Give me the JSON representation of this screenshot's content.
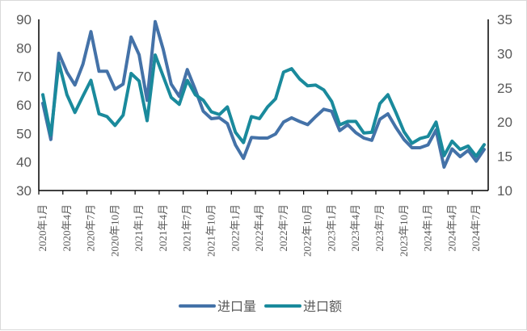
{
  "chart_data": {
    "type": "line",
    "title": "",
    "x_start": "2020-01",
    "x_tick_labels": [
      "2020年1月",
      "2020年4月",
      "2020年7月",
      "2020年10月",
      "2021年1月",
      "2021年4月",
      "2021年7月",
      "2021年10月",
      "2022年1月",
      "2022年4月",
      "2022年7月",
      "2022年10月",
      "2023年1月",
      "2023年4月",
      "2023年7月",
      "2023年10月",
      "2024年1月",
      "2024年4月",
      "2024年7月"
    ],
    "left_axis": {
      "ylim": [
        30,
        90
      ],
      "ticks": [
        30,
        40,
        50,
        60,
        70,
        80,
        90
      ]
    },
    "right_axis": {
      "ylim": [
        10,
        35
      ],
      "ticks": [
        10,
        15,
        20,
        25,
        30,
        35
      ]
    },
    "legend_position": "bottom",
    "grid": false,
    "series": [
      {
        "name": "进口量",
        "axis": "left",
        "color": "#4472a8",
        "values": [
          60.6,
          47.9,
          78.1,
          71.5,
          67,
          74.3,
          85.7,
          71.8,
          71.8,
          65.5,
          67.3,
          83.8,
          77.6,
          61.6,
          89.2,
          79.5,
          67.3,
          63,
          72.4,
          65.4,
          57.8,
          55.2,
          55.5,
          53.5,
          46,
          41.3,
          48.6,
          48.4,
          48.4,
          49.8,
          54,
          55.5,
          54.2,
          53.1,
          55.9,
          58.5,
          57.8,
          51,
          53.1,
          50.3,
          48.4,
          47.6,
          55,
          56.9,
          52.1,
          47.9,
          45,
          45,
          46,
          51.2,
          38.2,
          44.6,
          41.9,
          44.1,
          40.3,
          44.4
        ]
      },
      {
        "name": "进口额",
        "axis": "right",
        "color": "#1a8a9c",
        "values": [
          24,
          18.1,
          28.7,
          24,
          21.4,
          23.8,
          26.1,
          21.2,
          20.8,
          19.5,
          21,
          27.1,
          26,
          20.2,
          29.8,
          26.7,
          23.6,
          22.6,
          26.1,
          24,
          23.2,
          21.5,
          21.1,
          22.2,
          18.5,
          17,
          20.8,
          20.5,
          22.2,
          23.4,
          27.3,
          27.8,
          26.3,
          25.3,
          25.4,
          24.7,
          23,
          19.6,
          20.1,
          20.1,
          18.4,
          18.5,
          22.7,
          24,
          21.4,
          18.6,
          16.9,
          17.6,
          17.9,
          20,
          15.1,
          17.2,
          16,
          16.5,
          15,
          16.7
        ]
      }
    ]
  }
}
